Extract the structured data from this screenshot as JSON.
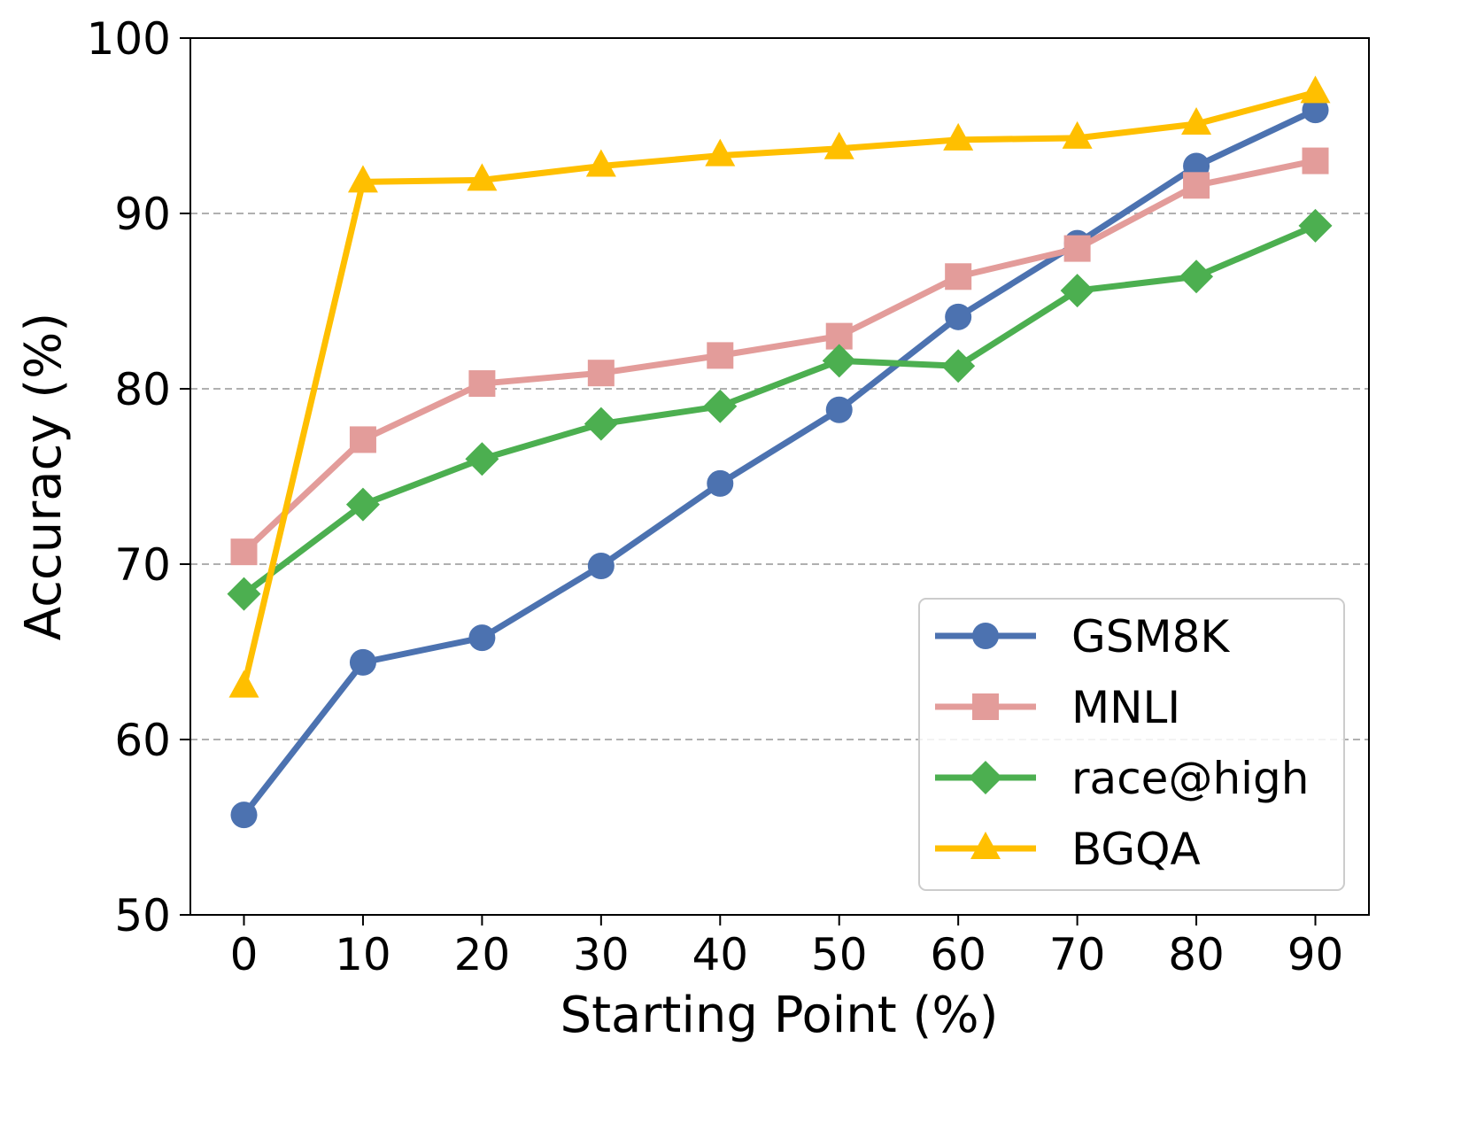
{
  "chart_data": {
    "type": "line",
    "title": "",
    "xlabel": "Starting Point (%)",
    "ylabel": "Accuracy (%)",
    "x": [
      0,
      10,
      20,
      30,
      40,
      50,
      60,
      70,
      80,
      90
    ],
    "xticks": [
      "0",
      "10",
      "20",
      "30",
      "40",
      "50",
      "60",
      "70",
      "80",
      "90"
    ],
    "yticks": [
      "50",
      "60",
      "70",
      "80",
      "90",
      "100"
    ],
    "xlim": [
      -4.5,
      94.5
    ],
    "ylim": [
      50,
      100
    ],
    "grid": "horizontal dashed",
    "legend_position": "lower-right",
    "series": [
      {
        "name": "GSM8K",
        "color": "#4c72b0",
        "marker": "circle",
        "values": [
          55.7,
          64.4,
          65.8,
          69.9,
          74.6,
          78.8,
          84.1,
          88.3,
          92.7,
          95.9
        ]
      },
      {
        "name": "MNLI",
        "color": "#e39c9a",
        "marker": "square",
        "values": [
          70.7,
          77.1,
          80.3,
          80.9,
          81.9,
          83.0,
          86.4,
          88.0,
          91.6,
          93.0
        ]
      },
      {
        "name": "race@high",
        "color": "#4caf50",
        "marker": "diamond",
        "values": [
          68.3,
          73.4,
          76.0,
          78.0,
          79.0,
          81.6,
          81.3,
          85.6,
          86.4,
          89.3
        ]
      },
      {
        "name": "BGQA",
        "color": "#ffbf00",
        "marker": "triangle",
        "values": [
          63.0,
          91.8,
          91.9,
          92.7,
          93.3,
          93.7,
          94.2,
          94.3,
          95.1,
          96.9
        ]
      }
    ]
  }
}
